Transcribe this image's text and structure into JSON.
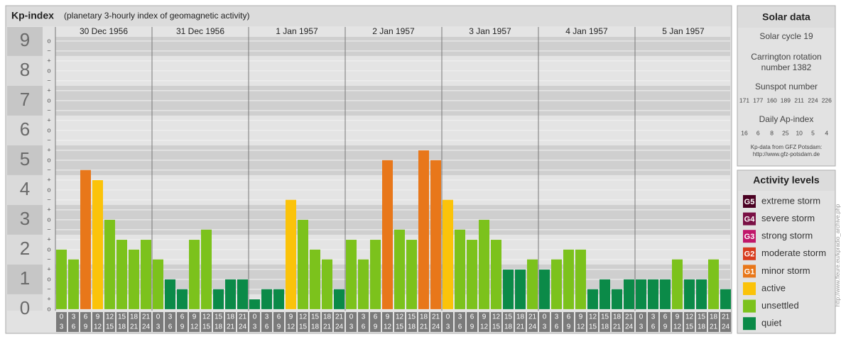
{
  "chart_data": {
    "type": "bar",
    "title": "Kp-index",
    "subtitle": "(planetary 3-hourly index of geomagnetic activity)",
    "days": [
      "30 Dec 1956",
      "31 Dec 1956",
      "1 Jan 1957",
      "2 Jan 1957",
      "3 Jan 1957",
      "4 Jan 1957",
      "5 Jan 1957"
    ],
    "hours": [
      [
        0,
        3
      ],
      [
        3,
        6
      ],
      [
        6,
        9
      ],
      [
        9,
        12
      ],
      [
        12,
        15
      ],
      [
        15,
        18
      ],
      [
        18,
        21
      ],
      [
        21,
        24
      ]
    ],
    "values": [
      2,
      1.67,
      4.67,
      4.33,
      3,
      2.33,
      2,
      2.33,
      1.67,
      1,
      0.67,
      2.33,
      2.67,
      0.67,
      1,
      1,
      0.33,
      0.67,
      0.67,
      3.67,
      3,
      2,
      1.67,
      0.67,
      2.33,
      1.67,
      2.33,
      5,
      2.67,
      2.33,
      5.33,
      5,
      3.67,
      2.67,
      2.33,
      3,
      2.33,
      1.33,
      1.33,
      1.67,
      1.33,
      1.67,
      2,
      2,
      0.67,
      1,
      0.67,
      1,
      1,
      1,
      1,
      1.67,
      1,
      1,
      1.67,
      0.67
    ],
    "colors": [
      "#7cc21c",
      "#7cc21c",
      "#e8771a",
      "#fbc30a",
      "#7cc21c",
      "#7cc21c",
      "#7cc21c",
      "#7cc21c",
      "#7cc21c",
      "#0b8a48",
      "#0b8a48",
      "#7cc21c",
      "#7cc21c",
      "#0b8a48",
      "#0b8a48",
      "#0b8a48",
      "#0b8a48",
      "#0b8a48",
      "#0b8a48",
      "#fbc30a",
      "#7cc21c",
      "#7cc21c",
      "#7cc21c",
      "#0b8a48",
      "#7cc21c",
      "#7cc21c",
      "#7cc21c",
      "#e8771a",
      "#7cc21c",
      "#7cc21c",
      "#e8771a",
      "#e8771a",
      "#fbc30a",
      "#7cc21c",
      "#7cc21c",
      "#7cc21c",
      "#7cc21c",
      "#0b8a48",
      "#0b8a48",
      "#7cc21c",
      "#0b8a48",
      "#7cc21c",
      "#7cc21c",
      "#7cc21c",
      "#0b8a48",
      "#0b8a48",
      "#0b8a48",
      "#0b8a48",
      "#0b8a48",
      "#0b8a48",
      "#0b8a48",
      "#7cc21c",
      "#0b8a48",
      "#0b8a48",
      "#7cc21c",
      "#0b8a48"
    ],
    "ylim": [
      -0.05,
      9.14
    ],
    "yticks": [
      0,
      1,
      2,
      3,
      4,
      5,
      6,
      7,
      8,
      9
    ],
    "minor_labels": [
      "−",
      "o",
      "+"
    ]
  },
  "solar_data": {
    "title": "Solar data",
    "cycle": "Solar cycle 19",
    "carrington": [
      "Carrington rotation",
      "number 1382"
    ],
    "sunspot_title": "Sunspot number",
    "sunspots": [
      171,
      177,
      160,
      189,
      211,
      224,
      226
    ],
    "ap_title": "Daily Ap-index",
    "ap": [
      16,
      6,
      8,
      25,
      10,
      5,
      4
    ],
    "source": [
      "Kp-data from GFZ Potsdam:",
      "http://www.gfz-potsdam.de"
    ]
  },
  "activity_levels": {
    "title": "Activity levels",
    "levels": [
      {
        "code": "G5",
        "name": "extreme storm",
        "color": "#4a0022"
      },
      {
        "code": "G4",
        "name": "severe storm",
        "color": "#7a1045"
      },
      {
        "code": "G3",
        "name": "strong storm",
        "color": "#c0176a"
      },
      {
        "code": "G2",
        "name": "moderate storm",
        "color": "#d83c1e"
      },
      {
        "code": "G1",
        "name": "minor storm",
        "color": "#e8771a"
      },
      {
        "name": "active",
        "color": "#fbc30a"
      },
      {
        "name": "unsettled",
        "color": "#7cc21c"
      },
      {
        "name": "quiet",
        "color": "#0b8a48"
      }
    ]
  },
  "side_note": "http://www.fleure.eu/kpradio_archive.php"
}
